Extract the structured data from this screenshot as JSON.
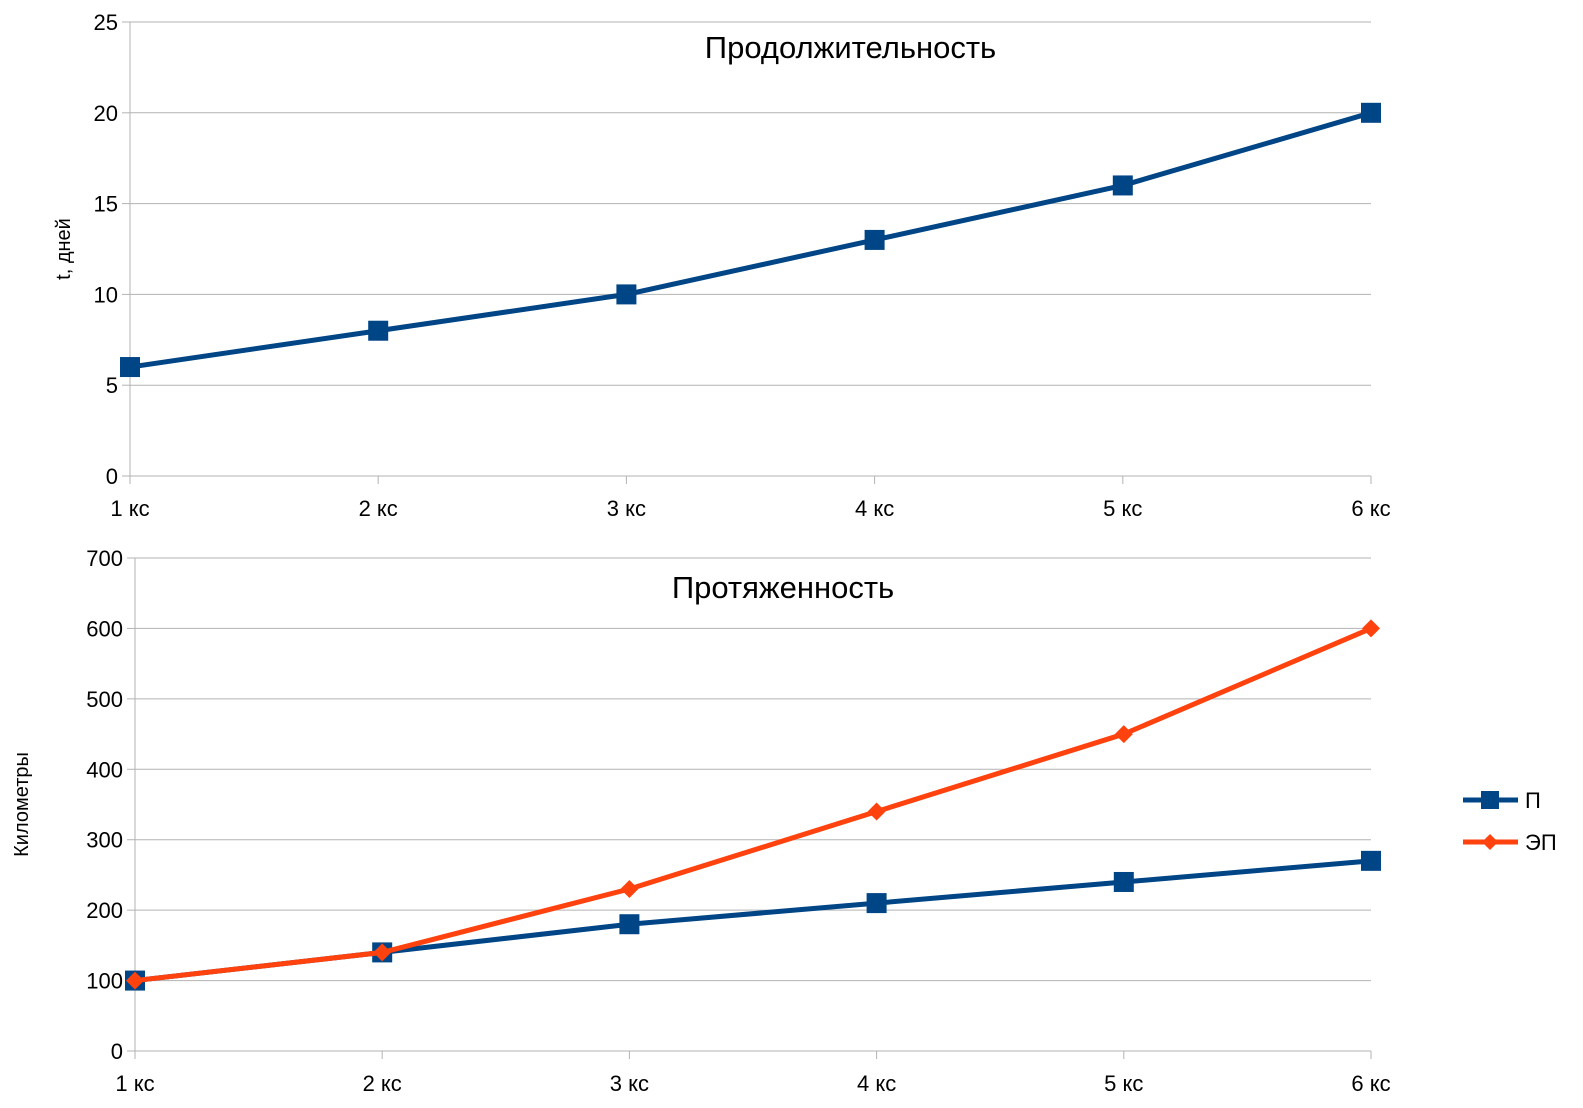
{
  "chart_data": [
    {
      "type": "line",
      "title": "Продолжительность",
      "xlabel": "",
      "ylabel": "t, дней",
      "categories": [
        "1 кс",
        "2 кс",
        "3 кс",
        "4 кс",
        "5 кс",
        "6 кс"
      ],
      "ylim": [
        0,
        25
      ],
      "yticks": [
        0,
        5,
        10,
        15,
        20,
        25
      ],
      "grid": true,
      "legend": "none",
      "series": [
        {
          "values": [
            6,
            8,
            10,
            13,
            16,
            20
          ],
          "color": "#004586",
          "marker": "square"
        }
      ]
    },
    {
      "type": "line",
      "title": "Протяженность",
      "xlabel": "",
      "ylabel": "Километры",
      "categories": [
        "1 кс",
        "2 кс",
        "3 кс",
        "4 кс",
        "5 кс",
        "6 кс"
      ],
      "ylim": [
        0,
        700
      ],
      "yticks": [
        0,
        100,
        200,
        300,
        400,
        500,
        600,
        700
      ],
      "grid": true,
      "legend": "right",
      "series": [
        {
          "name": "П",
          "values": [
            100,
            140,
            180,
            210,
            240,
            270
          ],
          "color": "#004586",
          "marker": "square"
        },
        {
          "name": "ЭП",
          "values": [
            100,
            140,
            230,
            340,
            450,
            600
          ],
          "color": "#ff420e",
          "marker": "diamond"
        }
      ]
    }
  ]
}
